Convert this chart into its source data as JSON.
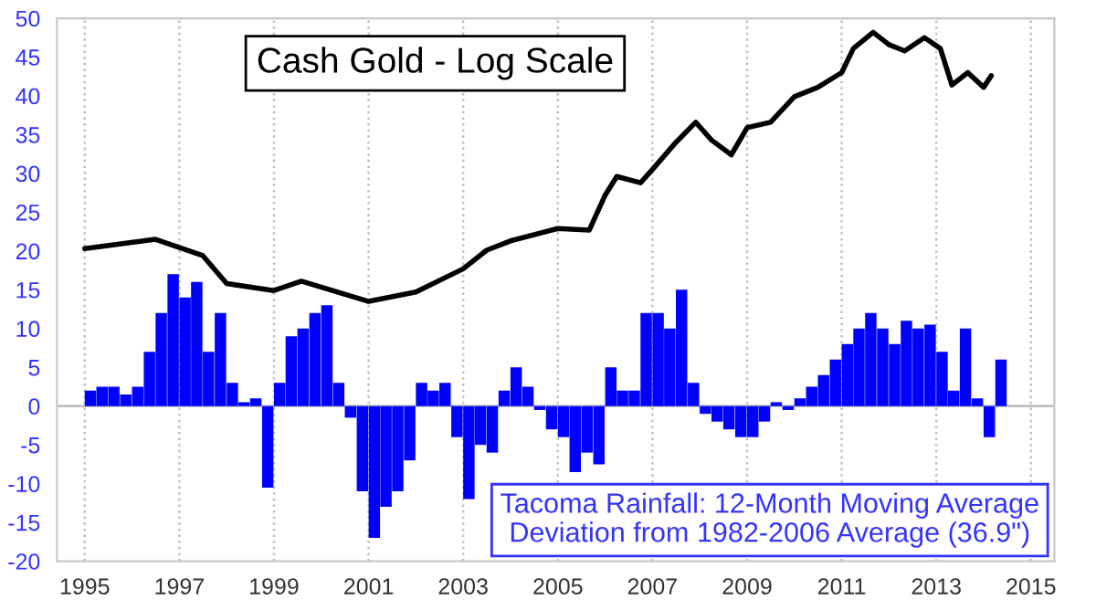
{
  "chart_data": {
    "type": "bar",
    "title": "Cash Gold - Log Scale",
    "annotations": [
      "Tacoma Rainfall: 12-Month Moving Average\nDeviation from 1982-2006 Average (36.9\")"
    ],
    "xlim": [
      "1994-06",
      "2015-07"
    ],
    "xticks": [
      "1995",
      "1997",
      "1999",
      "2001",
      "2003",
      "2005",
      "2007",
      "2009",
      "2011",
      "2013",
      "2015"
    ],
    "ylim": [
      -20,
      50
    ],
    "yticks": [
      -20,
      -15,
      -10,
      -5,
      0,
      5,
      10,
      15,
      20,
      25,
      30,
      35,
      40,
      45,
      50
    ],
    "grid": "x",
    "legend": false,
    "ref_lines": [
      {
        "axis": "y",
        "value": 0,
        "color": "#c0c0c0"
      }
    ],
    "series": [
      {
        "color": "#0000ff",
        "x": [
          "1995-01",
          "1995-04",
          "1995-07",
          "1995-10",
          "1996-01",
          "1996-04",
          "1996-07",
          "1996-10",
          "1997-01",
          "1997-04",
          "1997-07",
          "1997-10",
          "1998-01",
          "1998-04",
          "1998-07",
          "1998-10",
          "1999-01",
          "1999-04",
          "1999-07",
          "1999-10",
          "2000-01",
          "2000-04",
          "2000-07",
          "2000-10",
          "2001-01",
          "2001-04",
          "2001-07",
          "2001-10",
          "2002-01",
          "2002-04",
          "2002-07",
          "2002-10",
          "2003-01",
          "2003-04",
          "2003-07",
          "2003-10",
          "2004-01",
          "2004-04",
          "2004-07",
          "2004-10",
          "2005-01",
          "2005-04",
          "2005-07",
          "2005-10",
          "2006-01",
          "2006-04",
          "2006-07",
          "2006-10",
          "2007-01",
          "2007-04",
          "2007-07",
          "2007-10",
          "2008-01",
          "2008-04",
          "2008-07",
          "2008-10",
          "2009-01",
          "2009-04",
          "2009-07",
          "2009-10",
          "2010-01",
          "2010-04",
          "2010-07",
          "2010-10",
          "2011-01",
          "2011-04",
          "2011-07",
          "2011-10",
          "2012-01",
          "2012-04",
          "2012-07",
          "2012-10",
          "2013-01",
          "2013-04",
          "2013-07",
          "2013-10",
          "2014-01",
          "2014-04"
        ],
        "values": [
          2,
          2.5,
          2.5,
          1.5,
          2.5,
          7,
          12,
          17,
          14,
          16,
          7,
          12,
          3,
          0.5,
          1,
          -10.5,
          3,
          9,
          10,
          12,
          13,
          3,
          -1.5,
          -11,
          -17,
          -13,
          -11,
          -7,
          3,
          2,
          3,
          -4,
          -12,
          -5,
          -6,
          2,
          5,
          2.5,
          -0.5,
          -3,
          -4,
          -8.5,
          -6,
          -7.5,
          5,
          2,
          2,
          12,
          12,
          10,
          15,
          3,
          -1,
          -2,
          -3,
          -4,
          -4,
          -2,
          0.5,
          -0.5,
          1,
          2.5,
          4,
          6,
          8,
          10,
          12,
          10,
          8,
          11,
          10,
          10.5,
          7,
          2,
          10,
          1,
          -4,
          6
        ]
      },
      {
        "type": "line",
        "color": "#000000",
        "x": [
          "1995-01",
          "1996-07",
          "1997-07",
          "1998-01",
          "1999-01",
          "1999-08",
          "2001-01",
          "2002-01",
          "2003-01",
          "2003-07",
          "2004-01",
          "2005-01",
          "2005-09",
          "2006-01",
          "2006-04",
          "2006-10",
          "2007-01",
          "2007-07",
          "2007-12",
          "2008-04",
          "2008-09",
          "2009-01",
          "2009-07",
          "2010-01",
          "2010-07",
          "2011-01",
          "2011-04",
          "2011-09",
          "2012-01",
          "2012-05",
          "2012-10",
          "2013-02",
          "2013-05",
          "2013-09",
          "2014-01",
          "2014-03"
        ],
        "values": [
          20.3,
          21.5,
          19.4,
          15.8,
          14.9,
          16.1,
          13.5,
          14.7,
          17.7,
          20.1,
          21.3,
          22.9,
          22.7,
          27.2,
          29.6,
          28.8,
          30.5,
          34,
          36.6,
          34.3,
          32.4,
          35.9,
          36.6,
          39.9,
          41.1,
          43,
          46.1,
          48.2,
          46.6,
          45.8,
          47.5,
          46.1,
          41.4,
          43,
          41.1,
          42.6
        ]
      }
    ]
  }
}
